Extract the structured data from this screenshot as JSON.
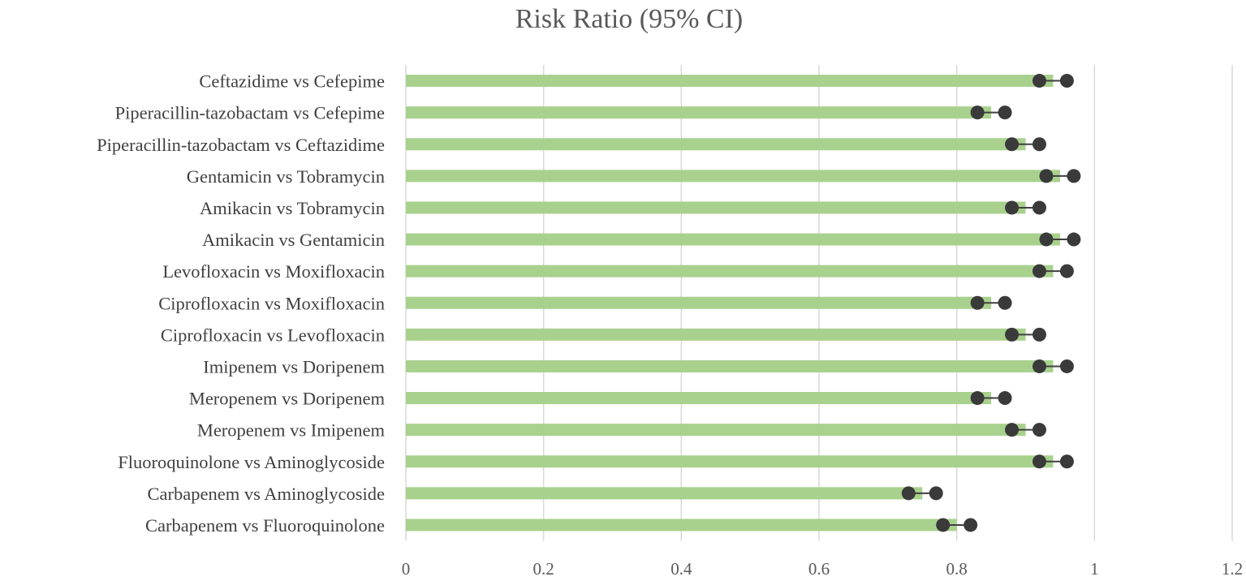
{
  "chart_data": {
    "type": "bar",
    "orientation": "horizontal",
    "title": "Risk Ratio (95% CI)",
    "xlabel": "",
    "ylabel": "",
    "xlim": [
      0,
      1.2
    ],
    "x_ticks": [
      "0",
      "0.2",
      "0.4",
      "0.6",
      "0.8",
      "1",
      "1.2"
    ],
    "grid": "vertical",
    "legend": "none",
    "colors": {
      "bar": "#a9d18e",
      "ci": "#3a3a3a",
      "grid": "#d9d9d9"
    },
    "categories": [
      "Ceftazidime vs Cefepime",
      "Piperacillin-tazobactam vs Cefepime",
      "Piperacillin-tazobactam vs Ceftazidime",
      "Gentamicin vs Tobramycin",
      "Amikacin vs Tobramycin",
      "Amikacin vs Gentamicin",
      "Levofloxacin vs Moxifloxacin",
      "Ciprofloxacin vs Moxifloxacin",
      "Ciprofloxacin vs Levofloxacin",
      "Imipenem vs Doripenem",
      "Meropenem vs Doripenem",
      "Meropenem vs Imipenem",
      "Fluoroquinolone vs Aminoglycoside",
      "Carbapenem vs Aminoglycoside",
      "Carbapenem vs Fluoroquinolone"
    ],
    "values": [
      0.94,
      0.85,
      0.9,
      0.95,
      0.9,
      0.95,
      0.94,
      0.85,
      0.9,
      0.94,
      0.85,
      0.9,
      0.94,
      0.75,
      0.8
    ],
    "ci_low": [
      0.92,
      0.83,
      0.88,
      0.93,
      0.88,
      0.93,
      0.92,
      0.83,
      0.88,
      0.92,
      0.83,
      0.88,
      0.92,
      0.73,
      0.78
    ],
    "ci_high": [
      0.96,
      0.87,
      0.92,
      0.97,
      0.92,
      0.97,
      0.96,
      0.87,
      0.92,
      0.96,
      0.87,
      0.92,
      0.96,
      0.77,
      0.82
    ]
  }
}
